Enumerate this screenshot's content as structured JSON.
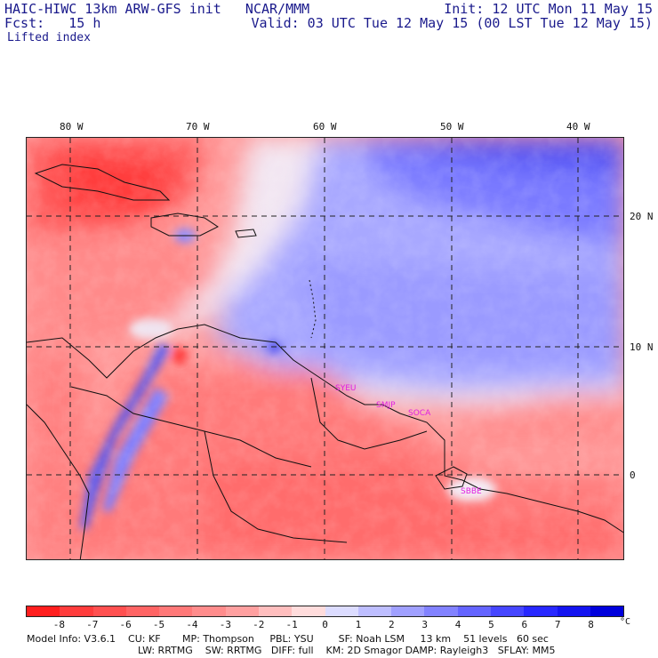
{
  "header": {
    "title_left": "HAIC-HIWC 13km ARW-GFS init   NCAR/MMM",
    "fcst_label": "Fcst:   15 h",
    "field_label": "Lifted index",
    "init_label": "Init: 12 UTC Mon 11 May 15",
    "valid_label": "Valid: 03 UTC Tue 12 May 15 (00 LST Tue 12 May 15)"
  },
  "axes": {
    "longitudes": [
      "80 W",
      "70 W",
      "60 W",
      "50 W",
      "40 W"
    ],
    "latitudes": [
      "20 N",
      "10 N",
      "0"
    ]
  },
  "stations": [
    "SYEU",
    "SMJP",
    "SOCA",
    "SBBE"
  ],
  "colorbar": {
    "ticks": [
      "-8",
      "-7",
      "-6",
      "-5",
      "-4",
      "-3",
      "-2",
      "-1",
      "0",
      "1",
      "2",
      "3",
      "4",
      "5",
      "6",
      "7",
      "8"
    ],
    "unit": "°C",
    "colors": [
      "#ff1e1e",
      "#ff3c3c",
      "#ff5050",
      "#ff6464",
      "#ff7878",
      "#ff8c8c",
      "#ffa0a0",
      "#ffbebe",
      "#ffdcdc",
      "#dcdcff",
      "#bebeff",
      "#a0a0ff",
      "#8282ff",
      "#6464ff",
      "#4646ff",
      "#2828ff",
      "#1414f0",
      "#0000dc"
    ]
  },
  "footer": {
    "line1": "Model Info: V3.6.1    CU: KF       MP: Thompson     PBL: YSU        SF: Noah LSM     13 km    51 levels   60 sec",
    "line2": "LW: RRTMG    SW: RRTMG   DIFF: full    KM: 2D Smagor DAMP: Rayleigh3   SFLAY: MM5"
  }
}
